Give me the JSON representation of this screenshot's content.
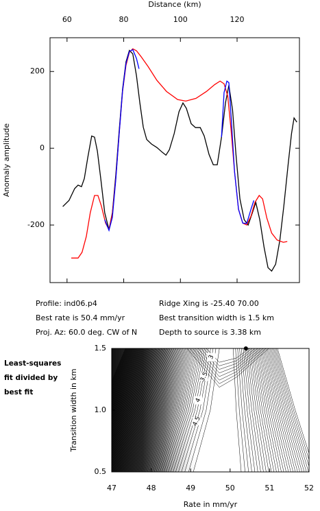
{
  "chart_data": [
    {
      "type": "line",
      "xlabel": "Distance (km)",
      "ylabel": "Anomaly amplitude",
      "xlim": [
        54,
        142
      ],
      "xticks": [
        60,
        80,
        100,
        120
      ],
      "ylim": [
        -350,
        288
      ],
      "yticks": [
        -200,
        0,
        200
      ],
      "series": [
        {
          "color": "#000000",
          "x": [
            58.5,
            60.7,
            62.7,
            63.9,
            65.1,
            66.1,
            67.3,
            68.7,
            69.7,
            70.7,
            71.9,
            73.3,
            74.8,
            76.0,
            77.2,
            78.4,
            79.6,
            80.8,
            82.0,
            83.2,
            84.5,
            85.7,
            86.9,
            88.1,
            89.8,
            91.7,
            93.7,
            94.9,
            96.1,
            97.8,
            99.5,
            100.9,
            102.1,
            103.8,
            105.3,
            107.0,
            108.4,
            110.1,
            111.6,
            113.0,
            114.5,
            115.9,
            117.1,
            118.4,
            119.6,
            121.0,
            122.5,
            123.9,
            125.4,
            126.6,
            128.0,
            129.5,
            130.9,
            132.2,
            133.6,
            135.1,
            136.5,
            138.0,
            139.2,
            140.1,
            141.1
          ],
          "values": [
            -152,
            -136,
            -105,
            -96,
            -100,
            -79,
            -25,
            32,
            29,
            -7,
            -79,
            -168,
            -212,
            -168,
            -70,
            46,
            154,
            225,
            255,
            246,
            189,
            118,
            55,
            23,
            11,
            2,
            -11,
            -18,
            -4,
            38,
            95,
            118,
            104,
            64,
            54,
            54,
            32,
            -16,
            -43,
            -43,
            29,
            118,
            164,
            100,
            -16,
            -132,
            -186,
            -200,
            -168,
            -141,
            -186,
            -257,
            -311,
            -320,
            -302,
            -239,
            -150,
            -43,
            38,
            79,
            68
          ]
        },
        {
          "color": "#ff0000",
          "x": [
            61.5,
            63.9,
            65.3,
            66.8,
            68.2,
            69.7,
            70.9,
            72.1,
            73.6,
            74.8,
            76.0,
            77.2,
            78.4,
            79.6,
            80.8,
            82.0,
            83.2,
            84.5,
            86.1,
            88.6,
            91.7,
            95.1,
            99.0,
            101.9,
            105.5,
            109.2,
            112.1,
            114.0,
            115.4,
            116.7,
            117.9,
            119.1,
            120.5,
            122.0,
            123.4,
            124.9,
            126.3,
            127.8,
            129.0,
            130.5,
            132.2,
            134.1,
            136.3,
            137.7
          ],
          "values": [
            -286,
            -286,
            -271,
            -230,
            -168,
            -123,
            -123,
            -150,
            -195,
            -212,
            -171,
            -79,
            38,
            148,
            216,
            250,
            259,
            254,
            239,
            213,
            177,
            148,
            127,
            123,
            130,
            148,
            166,
            175,
            168,
            136,
            46,
            -61,
            -159,
            -195,
            -200,
            -177,
            -141,
            -123,
            -132,
            -182,
            -221,
            -239,
            -245,
            -243
          ]
        },
        {
          "color": "#0000ff",
          "x": [
            73.3,
            74.8,
            76.0,
            77.2,
            78.4,
            79.6,
            80.8,
            82.0,
            83.2,
            84.5,
            85.4,
            null,
            114.5,
            115.4,
            116.4,
            117.1,
            117.9,
            119.1,
            120.5,
            122.0,
            123.4,
            124.9,
            125.9
          ],
          "values": [
            -186,
            -214,
            -180,
            -82,
            38,
            150,
            221,
            252,
            257,
            234,
            207,
            null,
            29,
            145,
            175,
            171,
            82,
            -61,
            -159,
            -195,
            -196,
            -159,
            -136
          ]
        }
      ]
    },
    {
      "type": "contour",
      "xlabel": "Rate in mm/yr",
      "ylabel": "Transition width in km",
      "xlim": [
        47,
        52
      ],
      "xticks": [
        47,
        48,
        49,
        50,
        51,
        52
      ],
      "ylim": [
        0.5,
        1.5
      ],
      "yticks": [
        0.5,
        {
          "value": 1,
          "label": "1.0"
        },
        1.5
      ],
      "contour_labels": [
        {
          "level": 3,
          "x": 49.52,
          "y": 1.43
        },
        {
          "level": 3.5,
          "x": 49.34,
          "y": 1.27
        },
        {
          "level": 4,
          "x": 49.19,
          "y": 1.08
        },
        {
          "level": 4.5,
          "x": 49.15,
          "y": 0.91
        }
      ],
      "best_fit": {
        "x": 50.4,
        "y": 1.5
      }
    }
  ],
  "info": {
    "left": [
      "Profile: ind06.p4",
      "Best rate is 50.4 mm/yr",
      "Proj. Az: 60.0 deg. CW of N"
    ],
    "right": [
      "Ridge Xing is -25.40 70.00",
      "Best transition width is 1.5 km",
      "Depth to source is   3.38 km"
    ]
  },
  "side_label": [
    "Least-squares",
    "fit divided by",
    "best fit"
  ]
}
